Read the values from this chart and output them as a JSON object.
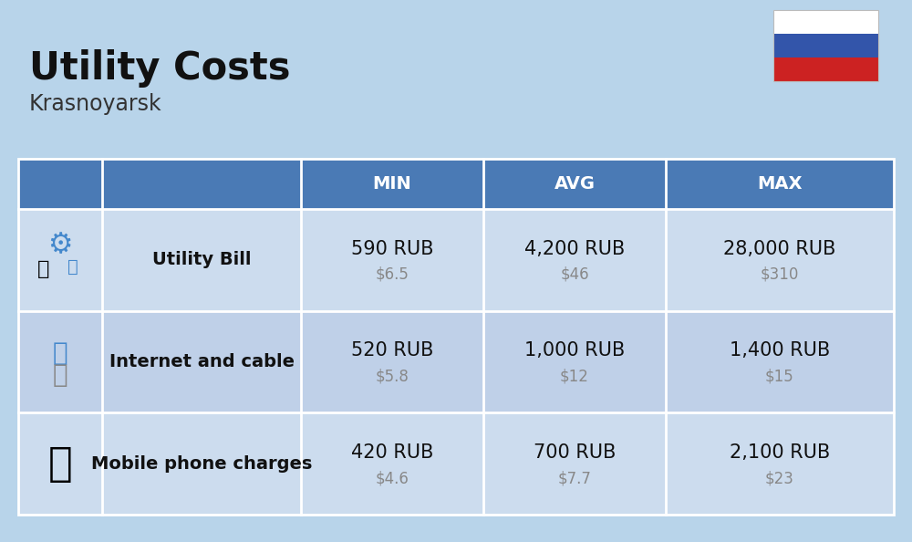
{
  "title": "Utility Costs",
  "subtitle": "Krasnoyarsk",
  "background_color": "#b8d4ea",
  "header_bg_color": "#4a7ab5",
  "header_text_color": "#ffffff",
  "row_bg_color_1": "#ccdcee",
  "row_bg_color_2": "#bfd0e8",
  "cell_border_color": "#ffffff",
  "headers": [
    "MIN",
    "AVG",
    "MAX"
  ],
  "rows": [
    {
      "label": "Utility Bill",
      "min_rub": "590 RUB",
      "min_usd": "$6.5",
      "avg_rub": "4,200 RUB",
      "avg_usd": "$46",
      "max_rub": "28,000 RUB",
      "max_usd": "$310"
    },
    {
      "label": "Internet and cable",
      "min_rub": "520 RUB",
      "min_usd": "$5.8",
      "avg_rub": "1,000 RUB",
      "avg_usd": "$12",
      "max_rub": "1,400 RUB",
      "max_usd": "$15"
    },
    {
      "label": "Mobile phone charges",
      "min_rub": "420 RUB",
      "min_usd": "$4.6",
      "avg_rub": "700 RUB",
      "avg_usd": "$7.7",
      "max_rub": "2,100 RUB",
      "max_usd": "$23"
    }
  ],
  "flag_colors": [
    "#ffffff",
    "#3355aa",
    "#cc2222"
  ],
  "title_fontsize": 30,
  "subtitle_fontsize": 17,
  "header_fontsize": 14,
  "label_fontsize": 14,
  "value_fontsize": 15,
  "usd_fontsize": 12
}
